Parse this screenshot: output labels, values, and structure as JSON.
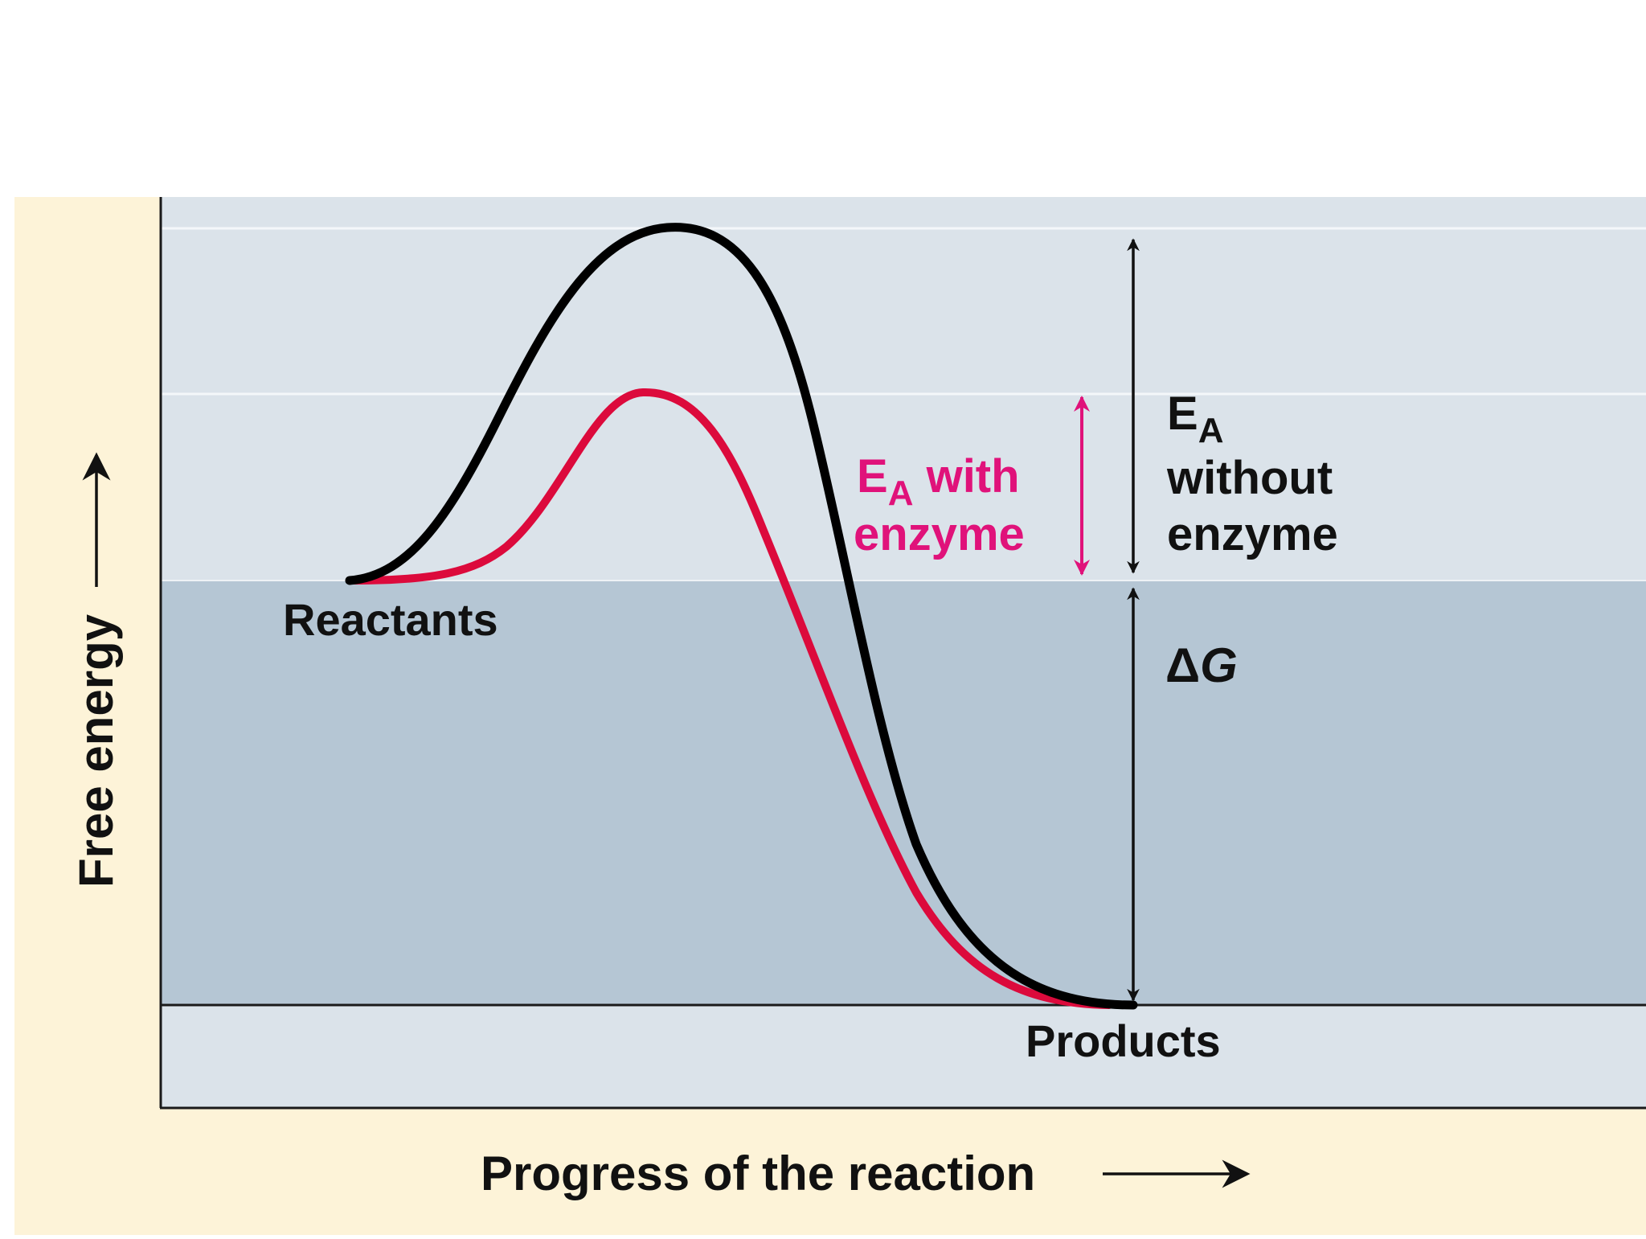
{
  "labels": {
    "y_axis": "Free energy",
    "x_axis": "Progress of the reaction",
    "reactants": "Reactants",
    "products": "Products",
    "ea_with_prefix": "E",
    "ea_with_sub": "A",
    "ea_with_suffix": " with",
    "ea_with_line2": "enzyme",
    "ea_without_prefix": "E",
    "ea_without_sub": "A",
    "ea_without_line2": "without",
    "ea_without_line3": "enzyme",
    "delta_g_delta": "Δ",
    "delta_g_g": "G"
  },
  "colors": {
    "outer_background": "#fdf3d8",
    "upper_panel": "#dbe3ea",
    "lower_panel": "#b5c6d4",
    "uncatalyzed_curve": "#000000",
    "catalyzed_curve": "#dc0a3c",
    "ea_with_label": "#e0127a",
    "text": "#111111"
  }
}
